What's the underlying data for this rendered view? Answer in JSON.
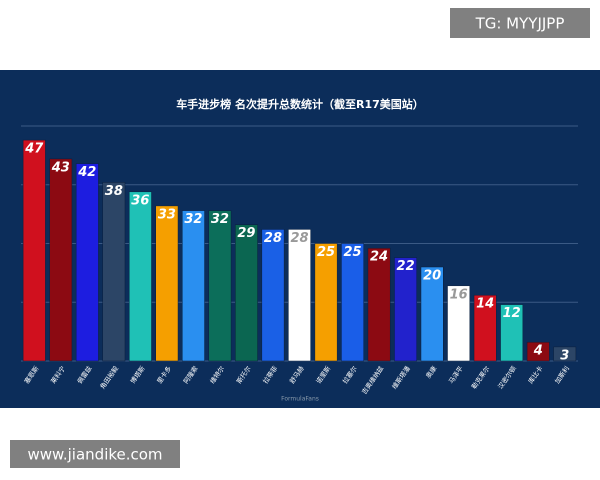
{
  "watermark_top": "TG: MYYJJPP",
  "watermark_bottom": "www.jiandike.com",
  "chart_data": {
    "type": "bar",
    "title": "车手进步榜 名次提升总数统计（截至R17美国站）",
    "source": "FormulaFans",
    "categories": [
      "塞恩斯",
      "莱科宁",
      "佩雷兹",
      "角田裕毅",
      "博塔斯",
      "里卡多",
      "阿隆索",
      "维特尔",
      "斯托尔",
      "拉蒂菲",
      "舒马赫",
      "诺里斯",
      "拉塞尔",
      "吉奥维纳兹",
      "维斯塔潘",
      "奥康",
      "马泽平",
      "勒克莱尔",
      "汉密尔顿",
      "库比卡",
      "加斯利"
    ],
    "values": [
      47,
      43,
      42,
      38,
      36,
      33,
      32,
      32,
      29,
      28,
      28,
      25,
      25,
      24,
      22,
      20,
      16,
      14,
      12,
      4,
      3
    ],
    "colors": [
      "#d0101e",
      "#8c0a12",
      "#1d1de0",
      "#2c4566",
      "#1fc1b6",
      "#f59f00",
      "#2a8ff0",
      "#0c6e5a",
      "#0b6651",
      "#1a60e6",
      "#ffffff",
      "#f59f00",
      "#1a5ee8",
      "#8c0a12",
      "#2222cc",
      "#2a8ff0",
      "#ffffff",
      "#d0101e",
      "#1fc1b6",
      "#8c0a12",
      "#2c4566"
    ],
    "ylim": [
      0,
      50
    ],
    "yticks": [
      0,
      12.5,
      25,
      37.5,
      50
    ],
    "grid": true
  }
}
